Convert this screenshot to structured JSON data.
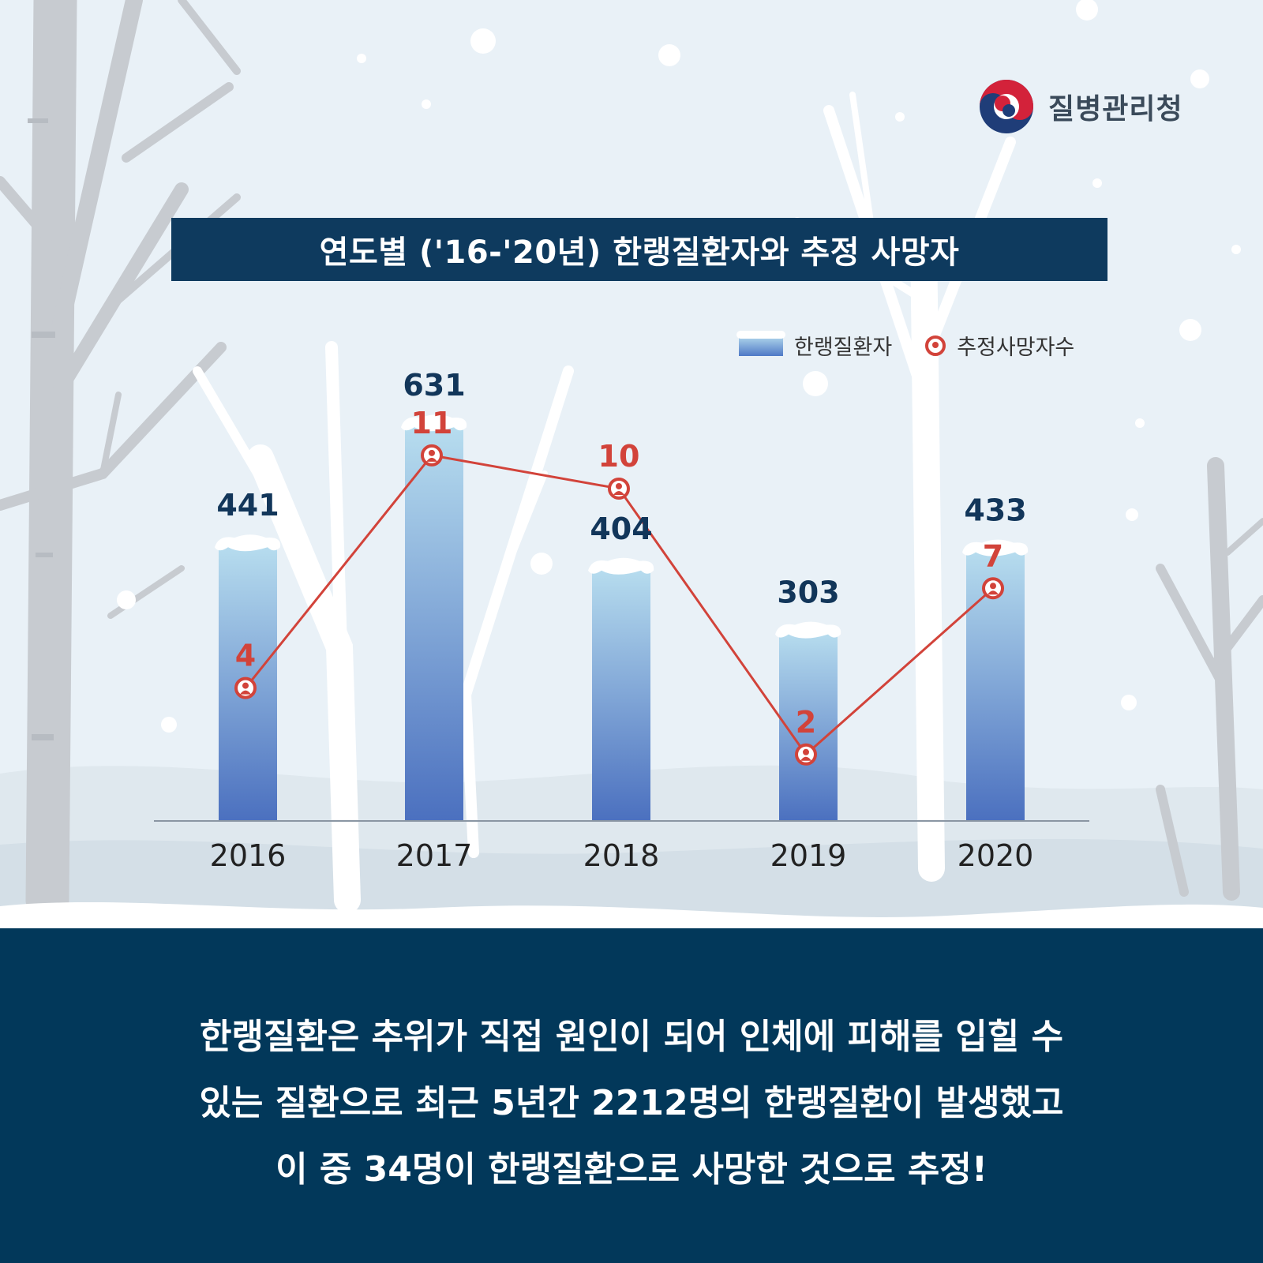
{
  "brand": {
    "name": "질병관리청",
    "logo_icon": "taegeuk-logo-icon"
  },
  "title": "연도별 ('16-'20년) 한랭질환자와 추정 사망자",
  "legend": {
    "patients_label": "한랭질환자",
    "deaths_label": "추정사망자수"
  },
  "chart_data": {
    "type": "bar",
    "categories": [
      "2016",
      "2017",
      "2018",
      "2019",
      "2020"
    ],
    "series": [
      {
        "name": "한랭질환자",
        "type": "bar",
        "values": [
          441,
          631,
          404,
          303,
          433
        ],
        "color": "#5a86cf"
      },
      {
        "name": "추정사망자수",
        "type": "line",
        "values": [
          4,
          11,
          10,
          2,
          7
        ],
        "color": "#d2433a"
      }
    ],
    "ylim_bars": [
      0,
      700
    ],
    "ylim_line": [
      0,
      13.3
    ],
    "legend_position": "top-right",
    "grid": false
  },
  "description": {
    "lines": [
      "한랭질환은 추위가 직접 원인이 되어 인체에 피해를 입힐 수",
      "있는 질환으로 최근 5년간 2212명의 한랭질환이 발생했고",
      "이 중 34명이 한랭질환으로 사망한 것으로 추정!"
    ]
  },
  "colors": {
    "navy": "#0e3a5e",
    "bottom_navy": "#02385a",
    "accent_red": "#d2433a",
    "value_navy": "#12365a"
  }
}
